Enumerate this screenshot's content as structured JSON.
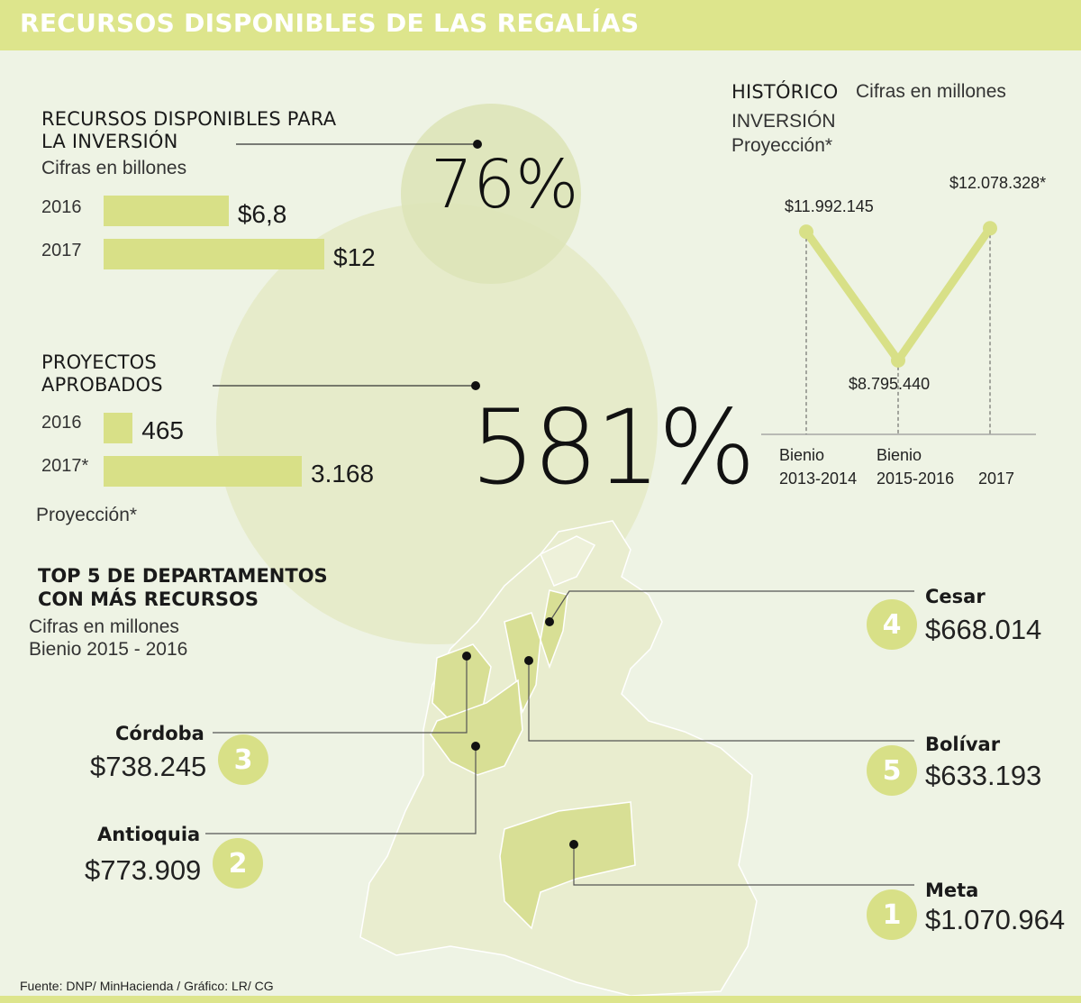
{
  "title": "RECURSOS DISPONIBLES DE LAS REGALÍAS",
  "colors": {
    "accent": "#dde58c",
    "bar": "#d8e087",
    "background": "#eef3e4",
    "circle": "#e4eac4",
    "map": "#e9edcf",
    "map_highlight": "#d8df95"
  },
  "inversion": {
    "title_line1": "RECURSOS DISPONIBLES PARA",
    "title_line2": "LA INVERSIÓN",
    "subtitle": "Cifras en billones",
    "percent": "76%"
  },
  "proyectos": {
    "title_line1": "PROYECTOS",
    "title_line2": "APROBADOS",
    "footnote": "Proyección*",
    "percent": "581%"
  },
  "historico": {
    "title": "HISTÓRICO",
    "units": "Cifras en millones",
    "line2": "INVERSIÓN",
    "line3": "Proyección*"
  },
  "top5": {
    "title_line1": "TOP 5 DE DEPARTAMENTOS",
    "title_line2": "CON MÁS RECURSOS",
    "sub1": "Cifras en millones",
    "sub2": "Bienio 2015 - 2016",
    "departments": [
      {
        "rank": "4",
        "name": "Cesar",
        "value": "$668.014",
        "amount": 668014
      },
      {
        "rank": "3",
        "name": "Córdoba",
        "value": "$738.245",
        "amount": 738245
      },
      {
        "rank": "5",
        "name": "Bolívar",
        "value": "$633.193",
        "amount": 633193
      },
      {
        "rank": "2",
        "name": "Antioquia",
        "value": "$773.909",
        "amount": 773909
      },
      {
        "rank": "1",
        "name": "Meta",
        "value": "$1.070.964",
        "amount": 1070964
      }
    ]
  },
  "source": "Fuente: DNP/ MinHacienda / Gráfico: LR/ CG",
  "chart_data": [
    {
      "type": "bar",
      "orientation": "horizontal",
      "categories": [
        "2016",
        "2017"
      ],
      "values": [
        6.8,
        12
      ],
      "labels": [
        "$6,8",
        "$12"
      ]
    },
    {
      "type": "bar",
      "orientation": "horizontal",
      "categories": [
        "2016",
        "2017*"
      ],
      "values": [
        465,
        3168
      ],
      "labels": [
        "465",
        "3.168"
      ]
    },
    {
      "type": "line",
      "x": [
        "Bienio 2013-2014",
        "Bienio 2015-2016",
        "2017"
      ],
      "values": [
        11992145,
        8795440,
        12078328
      ],
      "labels": [
        "$11.992.145",
        "$8.795.440",
        "$12.078.328*"
      ],
      "ylim": [
        7000000,
        12600000
      ]
    }
  ]
}
